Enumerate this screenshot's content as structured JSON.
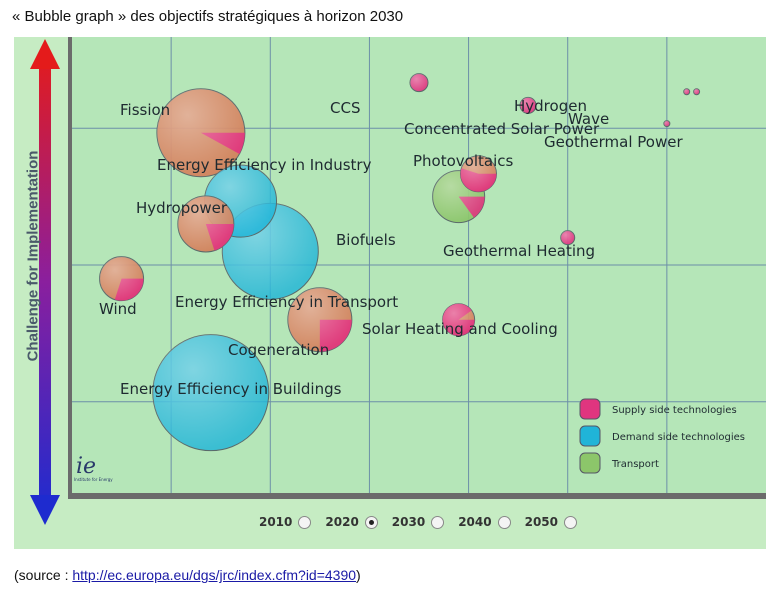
{
  "caption": "« Bubble graph » des objectifs stratégiques à horizon 2030",
  "source": {
    "prefix": "(source : ",
    "link_text": "http://ec.europa.eu/dgs/jrc/index.cfm?id=4390",
    "suffix": ")"
  },
  "logo": {
    "mark": "ie",
    "text": "Institute for Energy"
  },
  "year_selector": {
    "options": [
      "2010",
      "2020",
      "2030",
      "2040",
      "2050"
    ],
    "selected": "2020"
  },
  "colors": {
    "supply": "#e0357f",
    "demand": "#20b4d8",
    "transport": "#8cc66a",
    "fission_orange": "#d4805a",
    "background": "#c6ecc3"
  },
  "chart_data": {
    "type": "scatter",
    "title": "",
    "xlabel": "",
    "ylabel": "Challenge for Implementation",
    "legend": {
      "position": "bottom-right",
      "entries": [
        {
          "name": "Supply side technologies",
          "color": "#e0357f"
        },
        {
          "name": "Demand side technologies",
          "color": "#20b4d8"
        },
        {
          "name": "Transport",
          "color": "#8cc66a"
        }
      ]
    },
    "bubbles": [
      {
        "label": "Energy Efficiency in Buildings",
        "category": "demand",
        "x": 1.4,
        "y": 2.2,
        "size": 58,
        "supply_share": 0
      },
      {
        "label": "Energy Efficiency in Transport",
        "category": "demand",
        "x": 2.0,
        "y": 5.3,
        "size": 48,
        "supply_share": 0
      },
      {
        "label": "Energy Efficiency in Industry",
        "category": "demand",
        "x": 1.7,
        "y": 6.4,
        "size": 36,
        "supply_share": 0
      },
      {
        "label": "Fission",
        "category": "supply",
        "x": 1.3,
        "y": 7.9,
        "size": 44,
        "supply_share": 0.08
      },
      {
        "label": "Hydropower",
        "category": "supply",
        "x": 1.35,
        "y": 5.9,
        "size": 28,
        "supply_share": 0.2
      },
      {
        "label": "Wind",
        "category": "supply",
        "x": 0.5,
        "y": 4.7,
        "size": 22,
        "supply_share": 0.3
      },
      {
        "label": "Cogeneration",
        "category": "supply",
        "x": 2.5,
        "y": 3.8,
        "size": 32,
        "supply_share": 0.25
      },
      {
        "label": "Biofuels",
        "category": "transport",
        "x": 3.9,
        "y": 6.5,
        "size": 26,
        "supply_share": 0.15
      },
      {
        "label": "Photovoltaics",
        "category": "supply",
        "x": 4.1,
        "y": 7.0,
        "size": 18,
        "supply_share": 0.55
      },
      {
        "label": "CCS",
        "category": "supply",
        "x": 3.5,
        "y": 9.0,
        "size": 9,
        "supply_share": 1
      },
      {
        "label": "Concentrated Solar Power",
        "category": "supply",
        "x": 4.6,
        "y": 8.5,
        "size": 8,
        "supply_share": 1
      },
      {
        "label": "Hydrogen",
        "category": "supply",
        "x": 6.2,
        "y": 8.8,
        "size": 3,
        "supply_share": 1
      },
      {
        "label": "Wave",
        "category": "supply",
        "x": 6.3,
        "y": 8.8,
        "size": 3,
        "supply_share": 1
      },
      {
        "label": "Geothermal Power",
        "category": "supply",
        "x": 6.0,
        "y": 8.1,
        "size": 3,
        "supply_share": 1
      },
      {
        "label": "Geothermal Heating",
        "category": "supply",
        "x": 5.0,
        "y": 5.6,
        "size": 7,
        "supply_share": 1
      },
      {
        "label": "Solar Heating and Cooling",
        "category": "supply",
        "x": 3.9,
        "y": 3.8,
        "size": 16,
        "supply_share": 0.9
      }
    ]
  }
}
